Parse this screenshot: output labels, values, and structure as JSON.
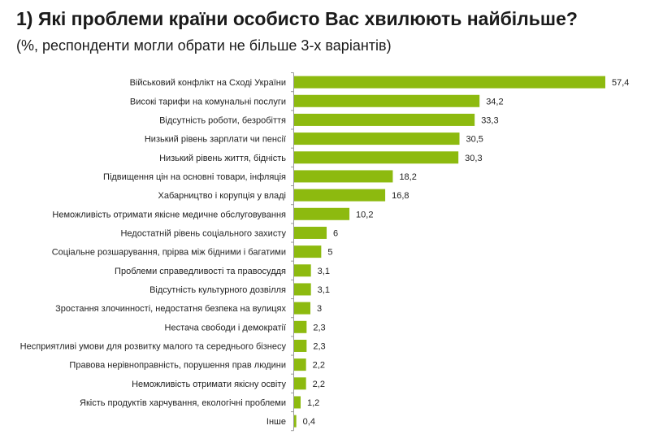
{
  "chart_data": {
    "type": "bar",
    "orientation": "horizontal",
    "title": "1) Які проблеми країни особисто Вас хвилюють найбільше?",
    "subtitle": "(%, респонденти могли обрати не більше 3-х варіантів)",
    "categories": [
      "Військовий конфлікт на Сході України",
      "Високі тарифи на комунальні послуги",
      "Відсутність роботи, безробіття",
      "Низький рівень зарплати чи пенсії",
      "Низький рівень життя, бідність",
      "Підвищення цін на основні товари, інфляція",
      "Хабарництво і корупція у владі",
      "Неможливість отримати якісне медичне обслуговування",
      "Недостатній рівень соціального захисту",
      "Соціальне розшарування, прірва між бідними і багатими",
      "Проблеми справедливості та правосуддя",
      "Відсутність культурного дозвілля",
      "Зростання злочинності, недостатня безпека на вулицях",
      "Нестача свободи і демократії",
      "Несприятливі умови для розвитку малого та середнього бізнесу",
      "Правова нерівноправність, порушення прав людини",
      "Неможливість отримати якісну освіту",
      "Якість продуктів харчування, екологічні проблеми",
      "Інше"
    ],
    "values": [
      57.4,
      34.2,
      33.3,
      30.5,
      30.3,
      18.2,
      16.8,
      10.2,
      6,
      5,
      3.1,
      3.1,
      3,
      2.3,
      2.3,
      2.2,
      2.2,
      1.2,
      0.4
    ],
    "value_labels": [
      "57,4",
      "34,2",
      "33,3",
      "30,5",
      "30,3",
      "18,2",
      "16,8",
      "10,2",
      "6",
      "5",
      "3,1",
      "3,1",
      "3",
      "2,3",
      "2,3",
      "2,2",
      "2,2",
      "1,2",
      "0,4"
    ],
    "xlim": [
      0,
      60
    ],
    "grid": false,
    "legend": "none",
    "bar_color": "#8dba0f"
  }
}
